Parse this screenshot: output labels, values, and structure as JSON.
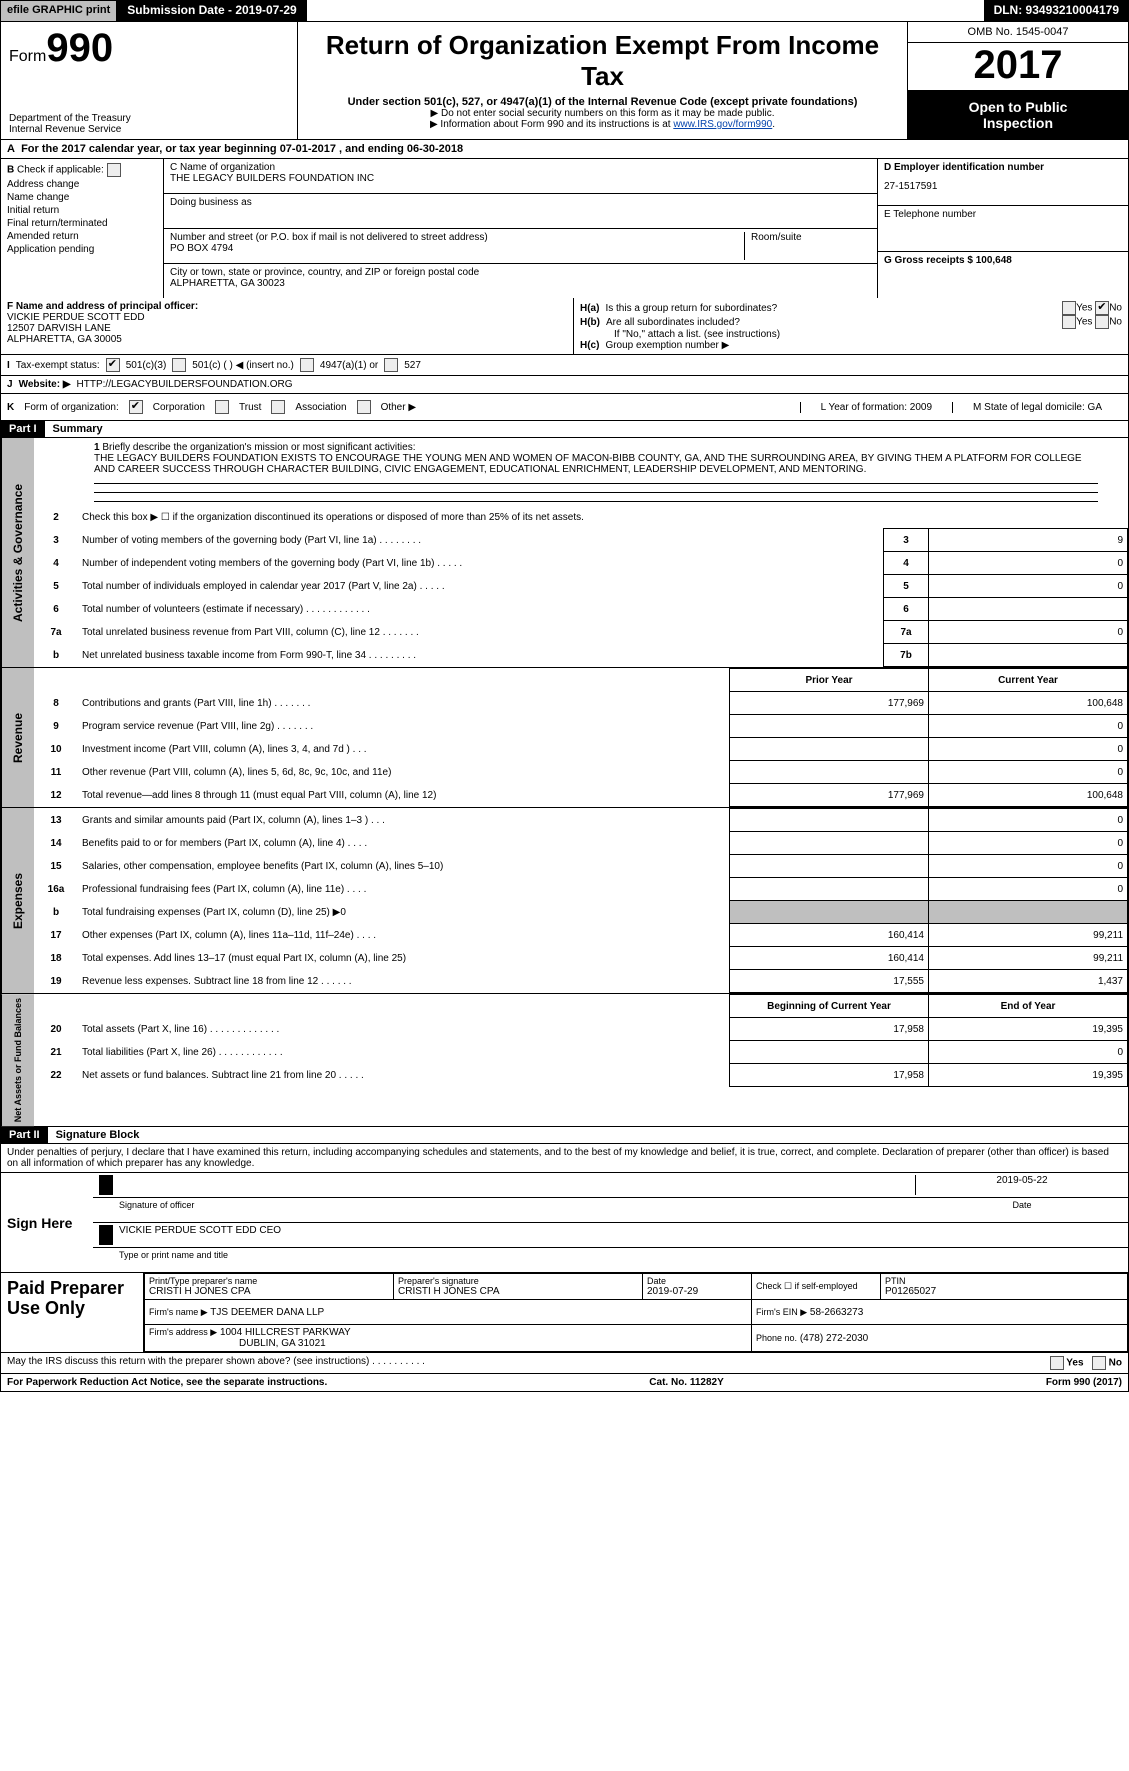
{
  "top": {
    "efile": "efile GRAPHIC print",
    "submission": "Submission Date - 2019-07-29",
    "dln": "DLN: 93493210004179"
  },
  "header": {
    "form_prefix": "Form",
    "form_number": "990",
    "dept1": "Department of the Treasury",
    "dept2": "Internal Revenue Service",
    "title": "Return of Organization Exempt From Income Tax",
    "subtitle": "Under section 501(c), 527, or 4947(a)(1) of the Internal Revenue Code (except private foundations)",
    "note1": "▶ Do not enter social security numbers on this form as it may be made public.",
    "note2_pre": "▶ Information about Form 990 and its instructions is at ",
    "note2_link": "www.IRS.gov/form990",
    "note2_post": ".",
    "omb": "OMB No. 1545-0047",
    "year": "2017",
    "open1": "Open to Public",
    "open2": "Inspection"
  },
  "rowA": {
    "label": "A",
    "text_pre": "For the 2017 calendar year, or tax year beginning ",
    "begin": "07-01-2017",
    "text_mid": " , and ending ",
    "end": "06-30-2018"
  },
  "colB": {
    "label": "B",
    "check_label": "Check if applicable:",
    "items": [
      "Address change",
      "Name change",
      "Initial return",
      "Final return/terminated",
      "Amended return",
      "Application pending"
    ]
  },
  "colC": {
    "c_label": "C Name of organization",
    "c_name": "THE LEGACY BUILDERS FOUNDATION INC",
    "dba_label": "Doing business as",
    "addr_label": "Number and street (or P.O. box if mail is not delivered to street address)",
    "addr": "PO BOX 4794",
    "room_label": "Room/suite",
    "city_label": "City or town, state or province, country, and ZIP or foreign postal code",
    "city": "ALPHARETTA, GA  30023"
  },
  "colDE": {
    "d_label": "D Employer identification number",
    "d_val": "27-1517591",
    "e_label": "E Telephone number",
    "g_label": "G Gross receipts $ 100,648"
  },
  "rowF": {
    "f_label": "F  Name and address of principal officer:",
    "f_name": "VICKIE PERDUE SCOTT EDD",
    "f_addr1": "12507 DARVISH LANE",
    "f_addr2": "ALPHARETTA, GA  30005",
    "ha_label": "H(a)",
    "ha_text": "Is this a group return for subordinates?",
    "hb_label": "H(b)",
    "hb_text": "Are all subordinates included?",
    "hb_note": "If \"No,\" attach a list. (see instructions)",
    "hc_label": "H(c)",
    "hc_text": "Group exemption number ▶",
    "yes": "Yes",
    "no": "No"
  },
  "rowI": {
    "label": "I",
    "text": "Tax-exempt status:",
    "o1": "501(c)(3)",
    "o2": "501(c) (  ) ◀ (insert no.)",
    "o3": "4947(a)(1) or",
    "o4": "527"
  },
  "rowJ": {
    "label": "J",
    "text": "Website: ▶",
    "val": "HTTP://LEGACYBUILDERSFOUNDATION.ORG"
  },
  "rowK": {
    "label": "K",
    "text": "Form of organization:",
    "o1": "Corporation",
    "o2": "Trust",
    "o3": "Association",
    "o4": "Other ▶",
    "l_label": "L Year of formation: 2009",
    "m_label": "M State of legal domicile: GA"
  },
  "part1": {
    "hdr": "Part I",
    "title": "Summary",
    "line1_label": "1",
    "line1_text": "Briefly describe the organization's mission or most significant activities:",
    "mission": "THE LEGACY BUILDERS FOUNDATION EXISTS TO ENCOURAGE THE YOUNG MEN AND WOMEN OF MACON-BIBB COUNTY, GA, AND THE SURROUNDING AREA, BY GIVING THEM A PLATFORM FOR COLLEGE AND CAREER SUCCESS THROUGH CHARACTER BUILDING, CIVIC ENGAGEMENT, EDUCATIONAL ENRICHMENT, LEADERSHIP DEVELOPMENT, AND MENTORING.",
    "vlabel_gov": "Activities & Governance",
    "vlabel_rev": "Revenue",
    "vlabel_exp": "Expenses",
    "vlabel_net": "Net Assets or Fund Balances",
    "prior_hdr": "Prior Year",
    "curr_hdr": "Current Year",
    "begin_hdr": "Beginning of Current Year",
    "end_hdr": "End of Year",
    "gov_lines": [
      {
        "n": "2",
        "t": "Check this box ▶ ☐ if the organization discontinued its operations or disposed of more than 25% of its net assets."
      },
      {
        "n": "3",
        "t": "Number of voting members of the governing body (Part VI, line 1a)   .    .    .    .    .    .    .    .",
        "box": "3",
        "v": "9"
      },
      {
        "n": "4",
        "t": "Number of independent voting members of the governing body (Part VI, line 1b)  .    .    .    .    .",
        "box": "4",
        "v": "0"
      },
      {
        "n": "5",
        "t": "Total number of individuals employed in calendar year 2017 (Part V, line 2a)  .    .    .    .    .",
        "box": "5",
        "v": "0"
      },
      {
        "n": "6",
        "t": "Total number of volunteers (estimate if necessary)    .    .    .    .    .    .    .    .    .    .    .    .",
        "box": "6",
        "v": ""
      },
      {
        "n": "7a",
        "t": "Total unrelated business revenue from Part VIII, column (C), line 12    .    .    .    .    .    .    .",
        "box": "7a",
        "v": "0"
      },
      {
        "n": "b",
        "t": "Net unrelated business taxable income from Form 990-T, line 34   .    .    .    .    .    .    .    .    .",
        "box": "7b",
        "v": ""
      }
    ],
    "rev_lines": [
      {
        "n": "8",
        "t": "Contributions and grants (Part VIII, line 1h)   .    .    .    .    .    .    .",
        "p": "177,969",
        "c": "100,648"
      },
      {
        "n": "9",
        "t": "Program service revenue (Part VIII, line 2g)   .    .    .    .    .    .    .",
        "p": "",
        "c": "0"
      },
      {
        "n": "10",
        "t": "Investment income (Part VIII, column (A), lines 3, 4, and 7d )   .    .    .",
        "p": "",
        "c": "0"
      },
      {
        "n": "11",
        "t": "Other revenue (Part VIII, column (A), lines 5, 6d, 8c, 9c, 10c, and 11e)",
        "p": "",
        "c": "0"
      },
      {
        "n": "12",
        "t": "Total revenue—add lines 8 through 11 (must equal Part VIII, column (A), line 12)",
        "p": "177,969",
        "c": "100,648"
      }
    ],
    "exp_lines": [
      {
        "n": "13",
        "t": "Grants and similar amounts paid (Part IX, column (A), lines 1–3 )   .    .    .",
        "p": "",
        "c": "0"
      },
      {
        "n": "14",
        "t": "Benefits paid to or for members (Part IX, column (A), line 4)   .    .    .    .",
        "p": "",
        "c": "0"
      },
      {
        "n": "15",
        "t": "Salaries, other compensation, employee benefits (Part IX, column (A), lines 5–10)",
        "p": "",
        "c": "0"
      },
      {
        "n": "16a",
        "t": "Professional fundraising fees (Part IX, column (A), line 11e)   .    .    .    .",
        "p": "",
        "c": "0"
      },
      {
        "n": "b",
        "t": "Total fundraising expenses (Part IX, column (D), line 25) ▶0",
        "shade": true
      },
      {
        "n": "17",
        "t": "Other expenses (Part IX, column (A), lines 11a–11d, 11f–24e)   .    .    .    .",
        "p": "160,414",
        "c": "99,211"
      },
      {
        "n": "18",
        "t": "Total expenses. Add lines 13–17 (must equal Part IX, column (A), line 25)",
        "p": "160,414",
        "c": "99,211"
      },
      {
        "n": "19",
        "t": "Revenue less expenses. Subtract line 18 from line 12   .    .    .    .    .    .",
        "p": "17,555",
        "c": "1,437"
      }
    ],
    "net_lines": [
      {
        "n": "20",
        "t": "Total assets (Part X, line 16)   .    .    .    .    .    .    .    .    .    .    .    .    .",
        "p": "17,958",
        "c": "19,395"
      },
      {
        "n": "21",
        "t": "Total liabilities (Part X, line 26)   .    .    .    .    .    .    .    .    .    .    .    .",
        "p": "",
        "c": "0"
      },
      {
        "n": "22",
        "t": "Net assets or fund balances. Subtract line 21 from line 20   .    .    .    .    .",
        "p": "17,958",
        "c": "19,395"
      }
    ]
  },
  "part2": {
    "hdr": "Part II",
    "title": "Signature Block",
    "penalty": "Under penalties of perjury, I declare that I have examined this return, including accompanying schedules and statements, and to the best of my knowledge and belief, it is true, correct, and complete. Declaration of preparer (other than officer) is based on all information of which preparer has any knowledge.",
    "sign_here": "Sign Here",
    "sig_officer": "Signature of officer",
    "sig_date": "2019-05-22",
    "date_lbl": "Date",
    "officer_name": "VICKIE PERDUE SCOTT EDD  CEO",
    "type_name": "Type or print name and title"
  },
  "prep": {
    "label": "Paid Preparer Use Only",
    "r1c1_lbl": "Print/Type preparer's name",
    "r1c1": "CRISTI H JONES CPA",
    "r1c2_lbl": "Preparer's signature",
    "r1c2": "CRISTI H JONES CPA",
    "r1c3_lbl": "Date",
    "r1c3": "2019-07-29",
    "r1c4_lbl": "Check ☐ if self-employed",
    "r1c5_lbl": "PTIN",
    "r1c5": "P01265027",
    "r2_lbl": "Firm's name    ▶",
    "r2": "TJS DEEMER DANA LLP",
    "r2b_lbl": "Firm's EIN ▶",
    "r2b": "58-2663273",
    "r3_lbl": "Firm's address ▶",
    "r3a": "1004 HILLCREST PARKWAY",
    "r3b": "DUBLIN, GA  31021",
    "r3c_lbl": "Phone no.",
    "r3c": "(478) 272-2030"
  },
  "footer": {
    "discuss": "May the IRS discuss this return with the preparer shown above? (see instructions)   .    .    .    .    .    .    .    .    .    .",
    "yes": "Yes",
    "no": "No",
    "pra": "For Paperwork Reduction Act Notice, see the separate instructions.",
    "cat": "Cat. No. 11282Y",
    "form": "Form 990 (2017)"
  }
}
